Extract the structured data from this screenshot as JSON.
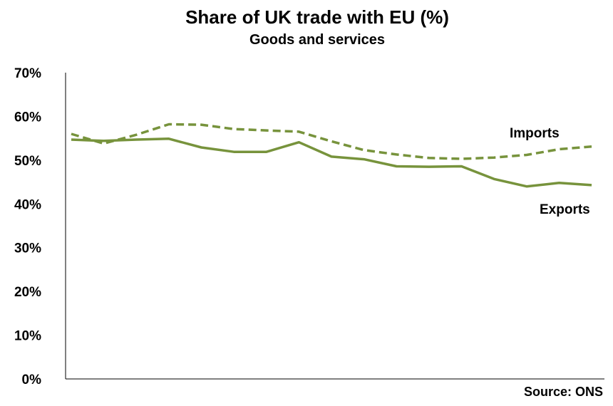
{
  "chart_data": {
    "type": "line",
    "title": "Share of UK trade with EU (%)",
    "subtitle": "Goods and services",
    "source": "Source: ONS",
    "y_ticks": [
      "0%",
      "10%",
      "20%",
      "30%",
      "40%",
      "50%",
      "60%",
      "70%"
    ],
    "ylim": [
      0,
      70
    ],
    "x_labels_shown": false,
    "grid": false,
    "series": [
      {
        "name": "Imports",
        "style": "dashed",
        "color": "#77933C",
        "values": [
          56.0,
          53.8,
          55.8,
          58.2,
          58.1,
          57.1,
          56.8,
          56.5,
          54.3,
          52.3,
          51.3,
          50.5,
          50.3,
          50.6,
          51.2,
          52.5,
          53.1
        ]
      },
      {
        "name": "Exports",
        "style": "solid",
        "color": "#77933C",
        "values": [
          54.7,
          54.4,
          54.7,
          54.9,
          52.9,
          51.9,
          51.9,
          54.1,
          50.8,
          50.2,
          48.6,
          48.5,
          48.6,
          45.7,
          44.0,
          44.8,
          44.3
        ]
      }
    ]
  }
}
